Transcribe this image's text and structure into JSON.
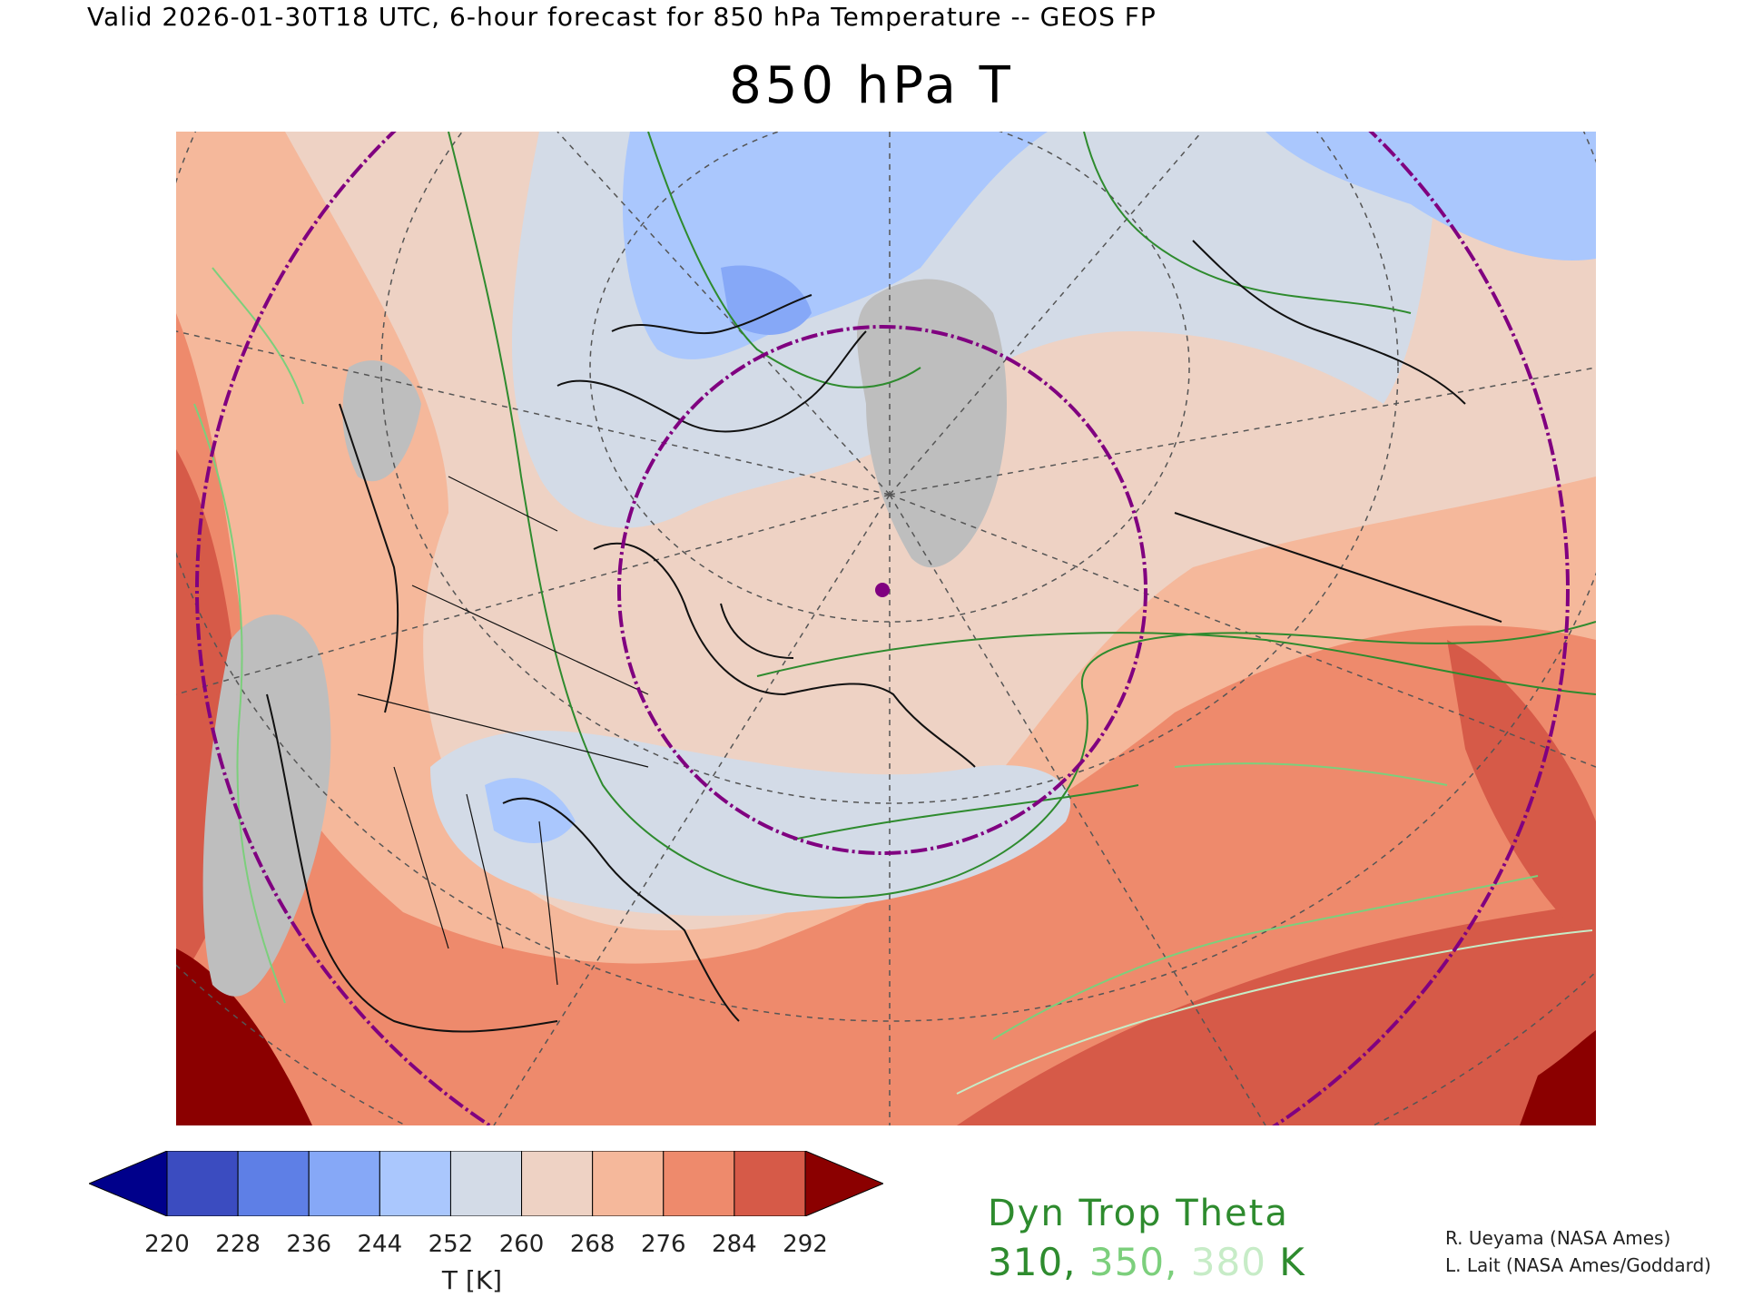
{
  "header": {
    "valid_line": "Valid 2026-01-30T18 UTC, 6-hour forecast for 850 hPa Temperature -- GEOS FP",
    "title": "850 hPa T"
  },
  "colorbar": {
    "ticks": [
      "220",
      "228",
      "236",
      "244",
      "252",
      "260",
      "268",
      "276",
      "284",
      "292"
    ],
    "unit_label": "T [K]",
    "under_color": "#00008b",
    "over_color": "#8b0000",
    "bin_colors": [
      "#3b4cc0",
      "#5e7fe6",
      "#86a8f7",
      "#aac7fd",
      "#d3dbe7",
      "#eed2c4",
      "#f5b89b",
      "#ee8a6c",
      "#d65a48"
    ]
  },
  "legend": {
    "title": "Dyn Trop Theta",
    "values": [
      {
        "text": "310,",
        "color": "#2e8b2e"
      },
      {
        "text": "350,",
        "color": "#7ccf7c"
      },
      {
        "text": "380",
        "color": "#c7ecc7"
      },
      {
        "text": "K",
        "color": "#2e8b2e"
      }
    ]
  },
  "credits": [
    "R. Ueyama (NASA Ames)",
    "L. Lait (NASA Ames/Goddard)"
  ],
  "map": {
    "projection": "polar stereographic (north)",
    "missing_color": "#bebebe",
    "marker_color": "#800080",
    "range_ring_color": "#800080",
    "contour_colors": [
      "#2e8b2e",
      "#7ccf7c",
      "#c7ecc7"
    ]
  }
}
